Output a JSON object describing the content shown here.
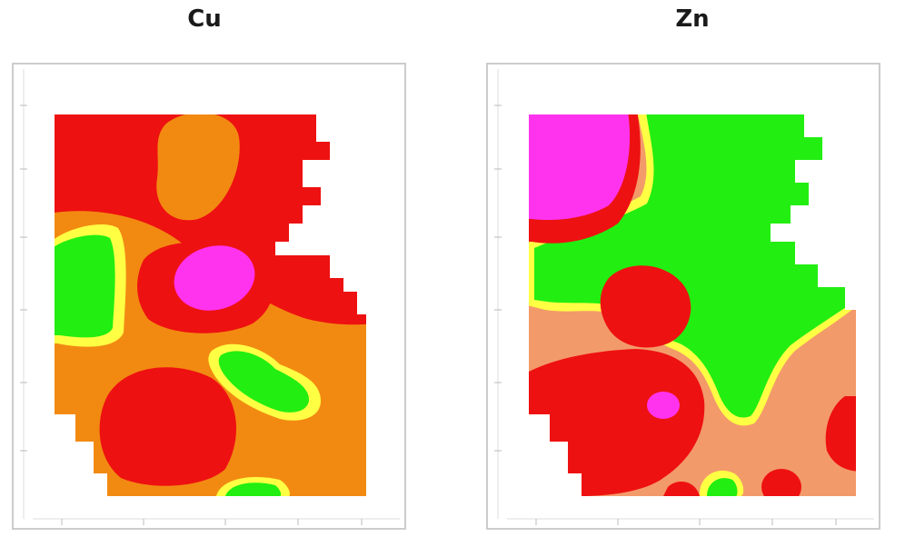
{
  "panels": [
    {
      "title": "Cu"
    },
    {
      "title": "Zn"
    }
  ],
  "colors": {
    "red": "#ee1111",
    "orange": "#f28a12",
    "salmon": "#f39a6a",
    "green": "#22ee11",
    "yellow": "#ffff44",
    "magenta": "#ff33ee",
    "frame": "#cccccc"
  }
}
